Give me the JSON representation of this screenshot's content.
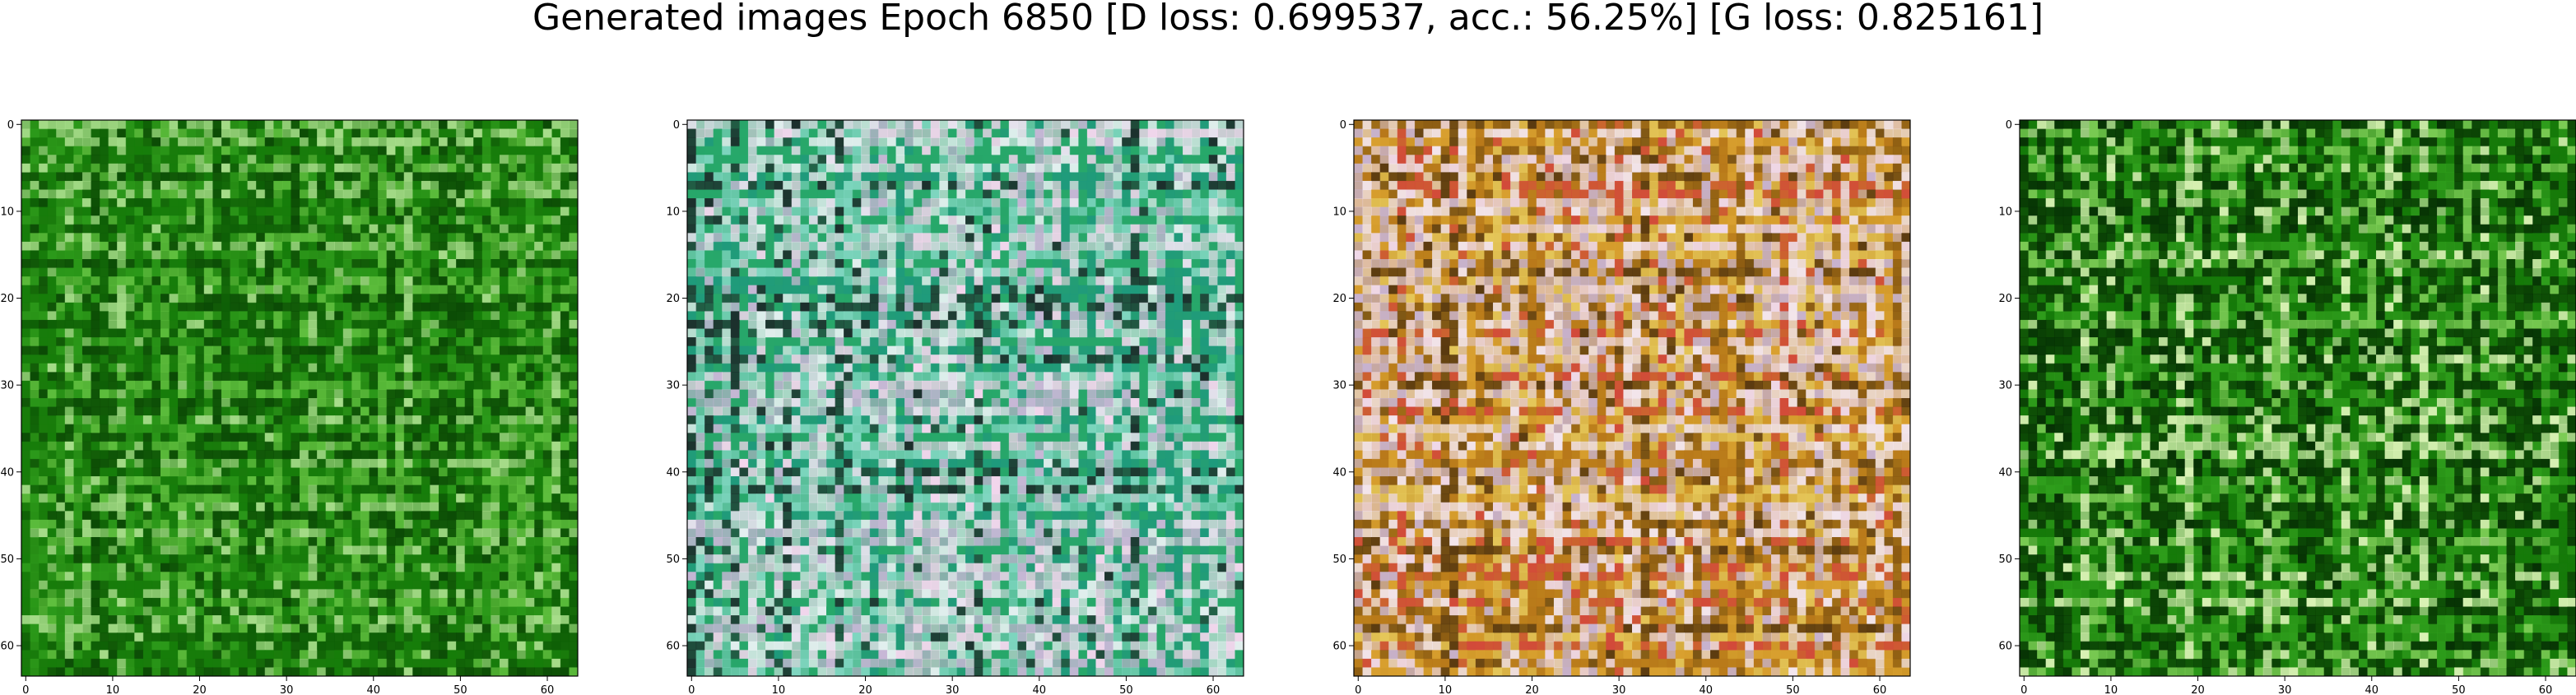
{
  "title": "Generated images Epoch 6850 [D loss: 0.699537, acc.: 56.25%] [G loss: 0.825161]",
  "chart_data": {
    "type": "heatmap",
    "description_of_values": "image panels",
    "panels": [
      {
        "base_color": "#1f7a0e",
        "palette": [
          "#0b4a05",
          "#167d0a",
          "#2c9a1a",
          "#5fbf3e",
          "#a7dd8a",
          "#0e5f06"
        ],
        "xlim": [
          -0.5,
          63.5
        ],
        "ylim": [
          63.5,
          -0.5
        ],
        "xticks": [
          0,
          10,
          20,
          30,
          40,
          50,
          60
        ],
        "yticks": [
          0,
          10,
          20,
          30,
          40,
          50,
          60
        ]
      },
      {
        "base_color": "#2aa36a",
        "palette": [
          "#e8e2ef",
          "#c7b7d6",
          "#27a86a",
          "#1f9a7c",
          "#7fd6c0",
          "#f4d7ee",
          "#1c2f2c",
          "#e4f0f0"
        ],
        "xlim": [
          -0.5,
          63.5
        ],
        "ylim": [
          63.5,
          -0.5
        ],
        "xticks": [
          0,
          10,
          20,
          30,
          40,
          50,
          60
        ],
        "yticks": [
          0,
          10,
          20,
          30,
          40,
          50,
          60
        ]
      },
      {
        "base_color": "#c28b1e",
        "palette": [
          "#d9a030",
          "#b8781a",
          "#efd8e8",
          "#c7b2cf",
          "#8a5a12",
          "#e5c75a",
          "#f3e6ee",
          "#5a3a10",
          "#d24a3a"
        ],
        "xlim": [
          -0.5,
          63.5
        ],
        "ylim": [
          63.5,
          -0.5
        ],
        "xticks": [
          0,
          10,
          20,
          30,
          40,
          50,
          60
        ],
        "yticks": [
          0,
          10,
          20,
          30,
          40,
          50,
          60
        ]
      },
      {
        "base_color": "#1a7a0c",
        "palette": [
          "#0a3f04",
          "#157a09",
          "#2f9e1c",
          "#7ccc55",
          "#d9f2b4",
          "#063104"
        ],
        "xlim": [
          -0.5,
          63.5
        ],
        "ylim": [
          63.5,
          -0.5
        ],
        "xticks": [
          0,
          10,
          20,
          30,
          40,
          50,
          60
        ],
        "yticks": [
          0,
          10,
          20,
          30,
          40,
          50,
          60
        ]
      }
    ],
    "grid": false
  }
}
